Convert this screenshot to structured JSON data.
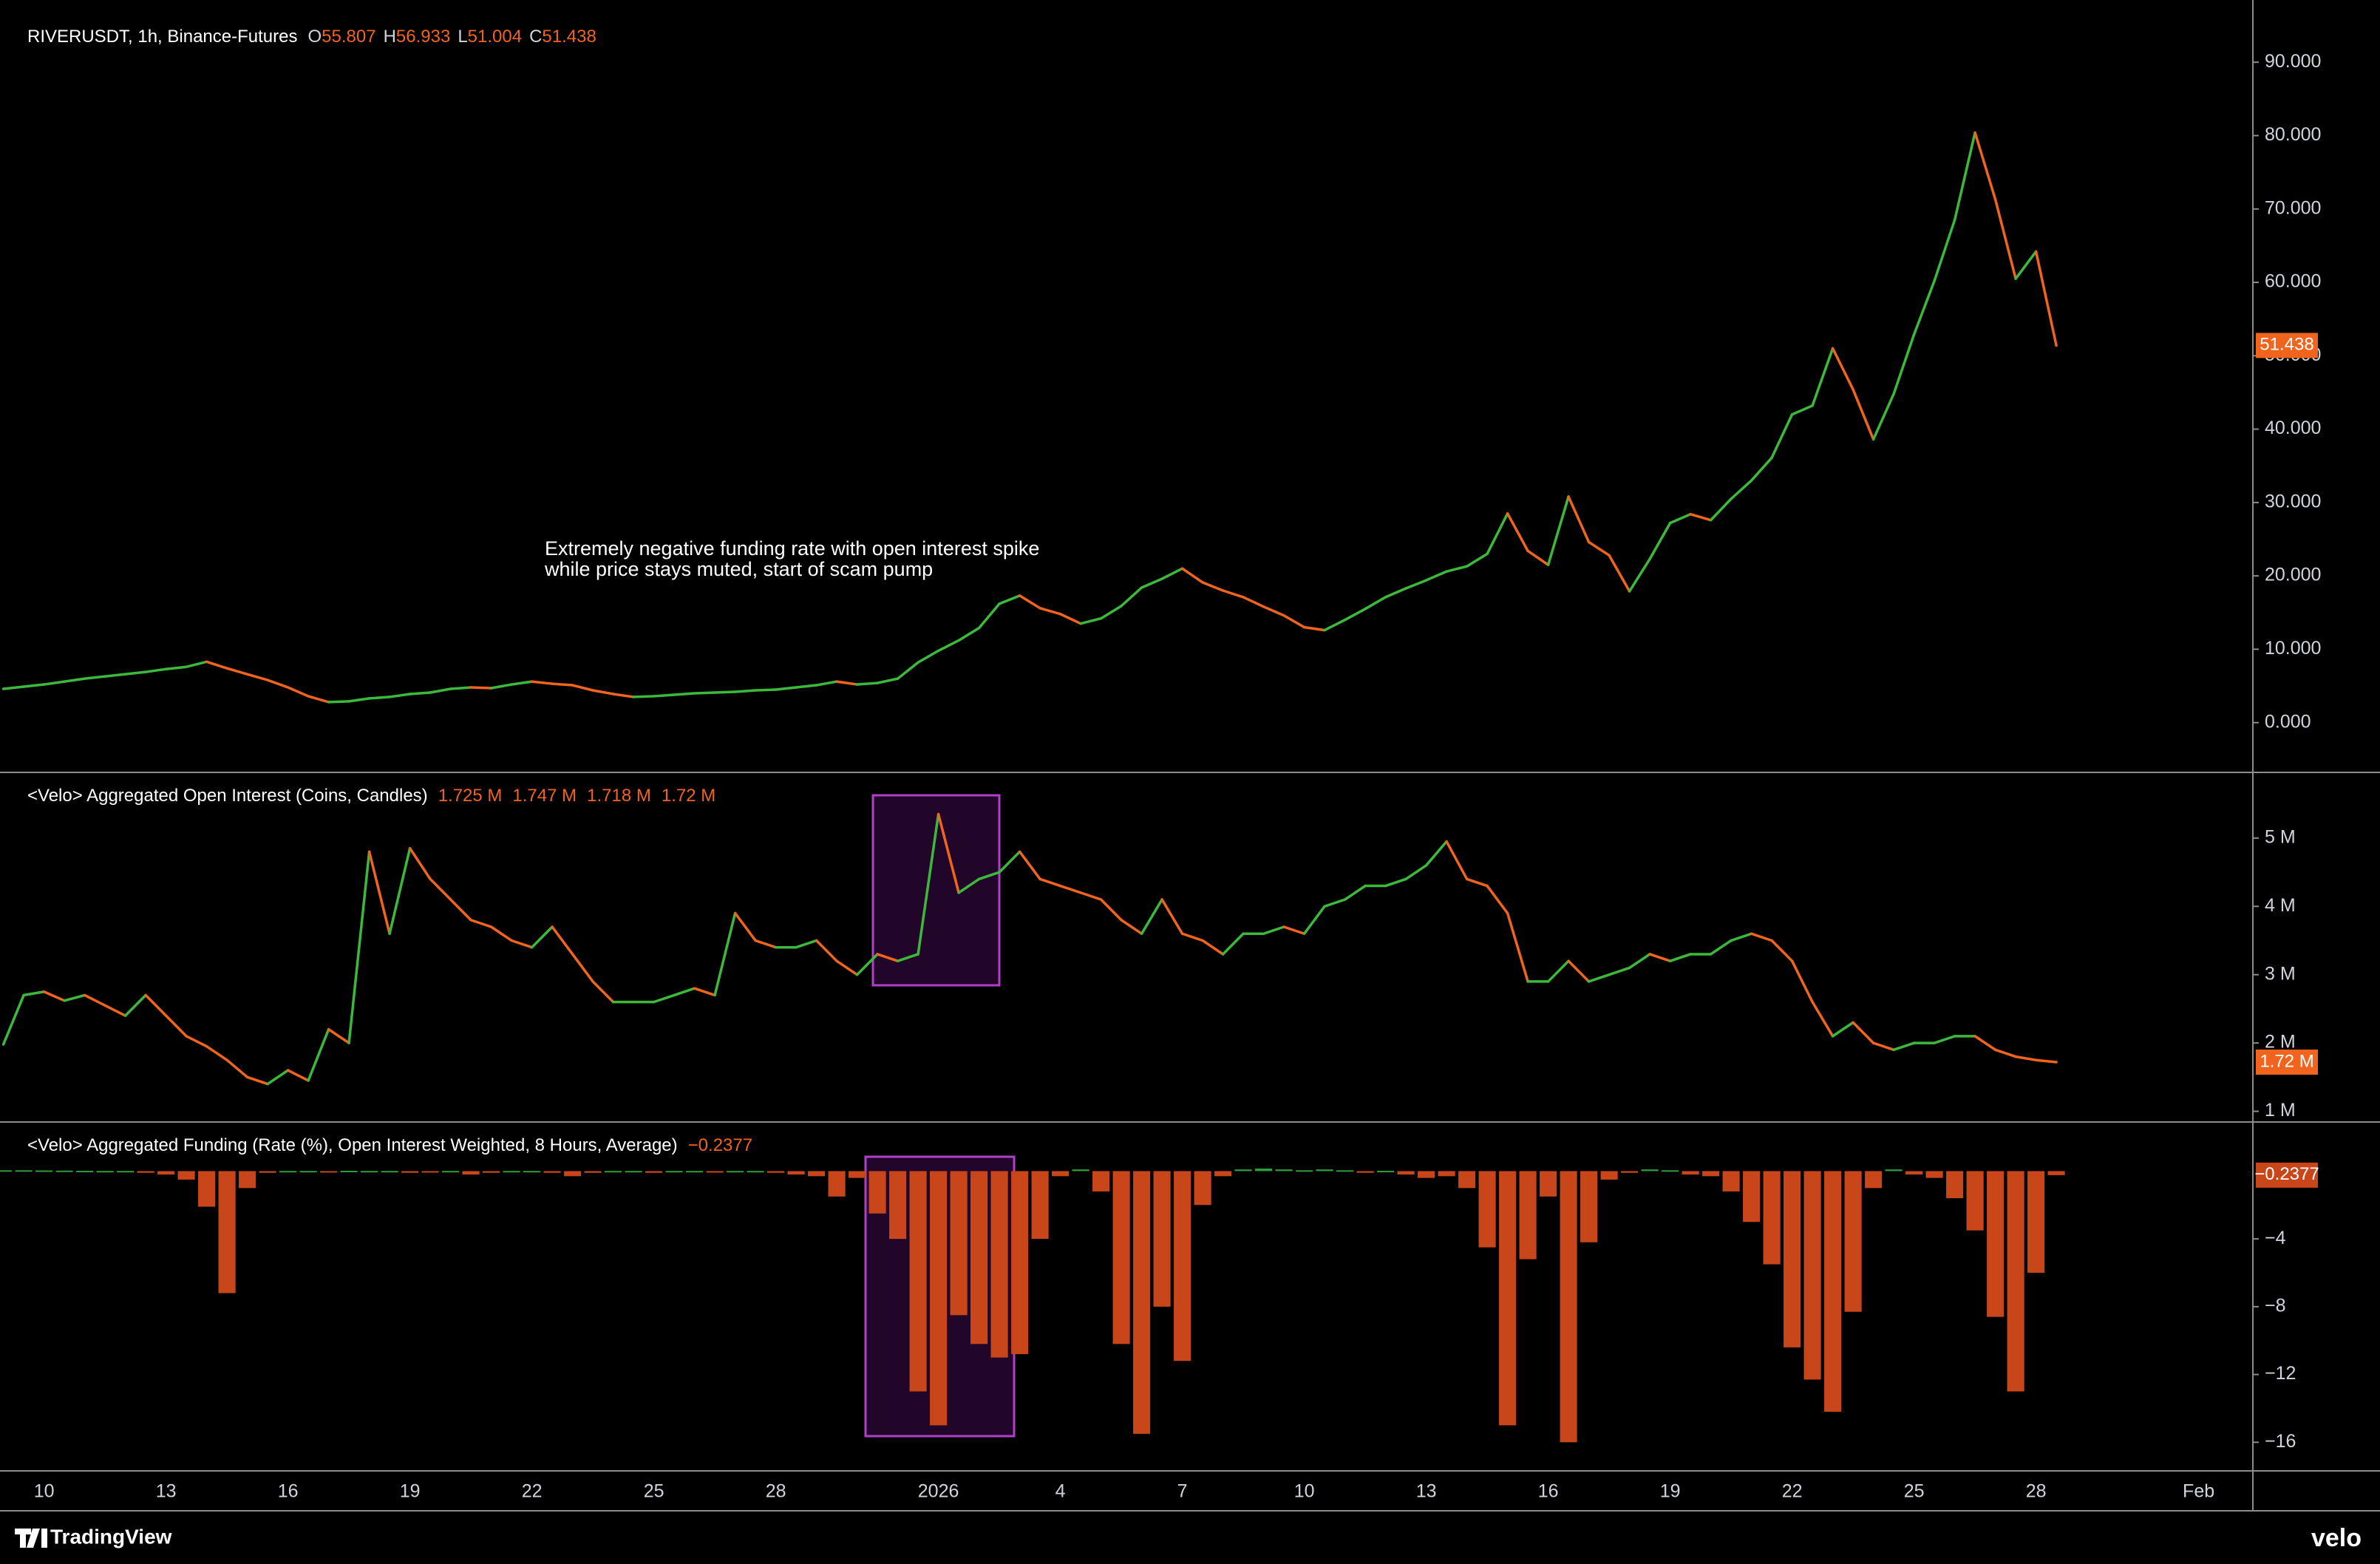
{
  "chart_data": [
    {
      "type": "line",
      "title": "RIVERUSDT, 1h, Binance-Futures",
      "header_values": [
        {
          "key": "O",
          "text": "55.807"
        },
        {
          "key": "H",
          "text": "56.933"
        },
        {
          "key": "L",
          "text": "51.004"
        },
        {
          "key": "C",
          "text": "51.438"
        }
      ],
      "annotation": [
        "Extremely negative funding rate with open interest spike",
        "while price stays muted, start of scam pump"
      ],
      "categories": [
        null,
        null,
        "10",
        null,
        null,
        null,
        null,
        null,
        "13",
        null,
        null,
        null,
        null,
        null,
        "16",
        null,
        null,
        null,
        null,
        null,
        "19",
        null,
        null,
        null,
        null,
        null,
        "22",
        null,
        null,
        null,
        null,
        null,
        "25",
        null,
        null,
        null,
        null,
        null,
        "28",
        null,
        null,
        null,
        null,
        null,
        null,
        null,
        "2026",
        null,
        null,
        null,
        null,
        null,
        "4",
        null,
        null,
        null,
        null,
        null,
        "7",
        null,
        null,
        null,
        null,
        null,
        "10",
        null,
        null,
        null,
        null,
        null,
        "13",
        null,
        null,
        null,
        null,
        null,
        "16",
        null,
        null,
        null,
        null,
        null,
        "19",
        null,
        null,
        null,
        null,
        null,
        "22",
        null,
        null,
        null,
        null,
        null,
        "25",
        null,
        null,
        null,
        null,
        null,
        "28",
        null,
        null,
        null,
        null,
        null,
        null,
        null,
        "Feb",
        null,
        null
      ],
      "values": [
        4.6,
        4.9,
        5.2,
        5.6,
        6.0,
        6.3,
        6.6,
        6.9,
        7.3,
        7.6,
        8.3,
        7.4,
        6.6,
        5.8,
        4.8,
        3.6,
        2.8,
        2.9,
        3.3,
        3.5,
        3.9,
        4.1,
        4.6,
        4.8,
        4.7,
        5.2,
        5.6,
        5.3,
        5.1,
        4.4,
        3.9,
        3.5,
        3.6,
        3.8,
        4.0,
        4.1,
        4.2,
        4.4,
        4.5,
        4.8,
        5.1,
        5.6,
        5.2,
        5.4,
        6.0,
        8.2,
        9.8,
        11.2,
        12.9,
        16.2,
        17.3,
        15.6,
        14.8,
        13.5,
        14.2,
        15.9,
        18.4,
        19.6,
        21.0,
        19.1,
        18.0,
        17.1,
        15.8,
        14.6,
        13.0,
        12.6,
        14.0,
        15.5,
        17.1,
        18.3,
        19.4,
        20.6,
        21.3,
        23.0,
        28.5,
        23.4,
        21.5,
        30.8,
        24.6,
        22.8,
        17.9,
        22.3,
        27.2,
        28.4,
        27.6,
        30.5,
        33.0,
        36.1,
        42.0,
        43.2,
        51.0,
        45.4,
        38.6,
        44.8,
        52.9,
        60.2,
        68.5,
        80.4,
        71.3,
        60.5,
        64.2,
        51.4,
        null,
        null,
        null,
        null,
        null,
        null,
        null,
        null,
        null
      ],
      "up_color": "#3cb93c",
      "down_color": "#f0641e",
      "last_label": "51.438",
      "ylim": [
        -6.58,
        98.48
      ],
      "yticks": [
        {
          "value": 0,
          "label": "0.000"
        },
        {
          "value": 10,
          "label": "10.000"
        },
        {
          "value": 20,
          "label": "20.000"
        },
        {
          "value": 30,
          "label": "30.000"
        },
        {
          "value": 40,
          "label": "40.000"
        },
        {
          "value": 50,
          "label": "50.000"
        },
        {
          "value": 60,
          "label": "60.000"
        },
        {
          "value": 70,
          "label": "70.000"
        },
        {
          "value": 80,
          "label": "80.000"
        },
        {
          "value": 90,
          "label": "90.000"
        }
      ],
      "grid": false
    },
    {
      "type": "line",
      "title": "<Velo> Aggregated Open Interest (Coins, Candles)",
      "header_values": [
        {
          "key": "",
          "text": "1.725 M"
        },
        {
          "key": "",
          "text": "1.747 M"
        },
        {
          "key": "",
          "text": "1.718 M"
        },
        {
          "key": "",
          "text": "1.72 M"
        }
      ],
      "values": [
        1980000,
        2700000,
        2750000,
        2620000,
        2700000,
        2550000,
        2400000,
        2700000,
        2400000,
        2100000,
        1950000,
        1750000,
        1500000,
        1400000,
        1600000,
        1450000,
        2200000,
        2000000,
        4800000,
        3600000,
        4850000,
        4400000,
        4100000,
        3800000,
        3700000,
        3500000,
        3400000,
        3700000,
        3300000,
        2900000,
        2600000,
        2600000,
        2600000,
        2700000,
        2800000,
        2700000,
        3900000,
        3500000,
        3400000,
        3400000,
        3500000,
        3200000,
        3000000,
        3300000,
        3200000,
        3300000,
        5350000,
        4200000,
        4400000,
        4500000,
        4800000,
        4400000,
        4300000,
        4200000,
        4100000,
        3800000,
        3600000,
        4100000,
        3600000,
        3500000,
        3300000,
        3600000,
        3600000,
        3700000,
        3600000,
        4000000,
        4100000,
        4300000,
        4300000,
        4400000,
        4600000,
        4950000,
        4400000,
        4300000,
        3900000,
        2900000,
        2900000,
        3200000,
        2900000,
        3000000,
        3100000,
        3300000,
        3200000,
        3300000,
        3300000,
        3500000,
        3600000,
        3500000,
        3200000,
        2600000,
        2100000,
        2300000,
        2000000,
        1900000,
        2000000,
        2000000,
        2100000,
        2100000,
        1900000,
        1800000,
        1750000,
        1720000,
        null,
        null,
        null,
        null,
        null,
        null,
        null,
        null,
        null
      ],
      "up_color": "#3cb93c",
      "down_color": "#f0641e",
      "last_label": "1.72 M",
      "ylim": [
        865000,
        5918000
      ],
      "yticks": [
        {
          "value": 1000000,
          "label": "1 M"
        },
        {
          "value": 2000000,
          "label": "2 M"
        },
        {
          "value": 3000000,
          "label": "3 M"
        },
        {
          "value": 4000000,
          "label": "4 M"
        },
        {
          "value": 5000000,
          "label": "5 M"
        }
      ],
      "grid": false
    },
    {
      "type": "bar",
      "title": "<Velo> Aggregated Funding (Rate (%), Open Interest Weighted, 8 Hours, Average)",
      "header_values": [
        {
          "key": "",
          "text": "−0.2377"
        }
      ],
      "values": [
        0.05,
        0.05,
        0.04,
        0.03,
        0.02,
        0.01,
        0.01,
        -0.1,
        -0.2,
        -0.5,
        -2.1,
        -7.2,
        -1.0,
        -0.1,
        0.01,
        0.01,
        -0.05,
        0.02,
        0.01,
        0.01,
        -0.1,
        -0.05,
        0.01,
        -0.2,
        -0.1,
        0.01,
        0.01,
        -0.1,
        -0.3,
        -0.1,
        0.01,
        0.01,
        -0.1,
        0.01,
        0.01,
        -0.05,
        0.01,
        0.01,
        -0.1,
        -0.2,
        -0.3,
        -1.5,
        -0.4,
        -2.5,
        -4.0,
        -13.0,
        -15.0,
        -8.5,
        -10.2,
        -11.0,
        -10.8,
        -4.0,
        -0.3,
        0.1,
        -1.2,
        -10.2,
        -15.5,
        -8.0,
        -11.2,
        -2.0,
        -0.3,
        0.1,
        0.15,
        0.1,
        0.05,
        0.1,
        0.05,
        -0.1,
        0.02,
        -0.2,
        -0.4,
        -0.3,
        -1.0,
        -4.5,
        -15.0,
        -5.2,
        -1.5,
        -16.0,
        -4.2,
        -0.5,
        -0.1,
        0.1,
        0.05,
        -0.2,
        -0.3,
        -1.2,
        -3.0,
        -5.5,
        -10.4,
        -12.3,
        -14.2,
        -8.3,
        -1.0,
        0.1,
        -0.2,
        -0.4,
        -1.6,
        -3.5,
        -8.6,
        -13.0,
        -6.0,
        -0.2377,
        null,
        null,
        null,
        null,
        null,
        null,
        null,
        null,
        null
      ],
      "up_color": "#2e9e3a",
      "down_color": "#c8461a",
      "last_label": "−0.2377",
      "ylim": [
        -17.6,
        2.81
      ],
      "yticks": [
        {
          "value": -16,
          "label": "−16"
        },
        {
          "value": -12,
          "label": "−12"
        },
        {
          "value": -8,
          "label": "−8"
        },
        {
          "value": -4,
          "label": "−4"
        }
      ],
      "grid": false
    }
  ],
  "footer": {
    "brand": "TradingView",
    "logo": "velo"
  }
}
